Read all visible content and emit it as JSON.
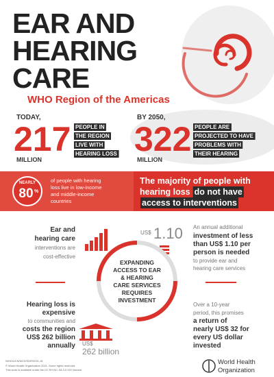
{
  "header": {
    "title": [
      "EAR AND",
      "HEARING",
      "CARE"
    ],
    "subtitle": "WHO Region of the Americas"
  },
  "stats": [
    {
      "when": "TODAY,",
      "number": "217",
      "unit": "MILLION",
      "label": [
        "PEOPLE IN",
        "THE REGION",
        "LIVE WITH",
        "HEARING LOSS"
      ]
    },
    {
      "when": "BY 2050,",
      "number": "322",
      "unit": "MILLION",
      "label": [
        "PEOPLE ARE",
        "PROJECTED TO HAVE",
        "PROBLEMS WITH",
        "THEIR HEARING"
      ]
    }
  ],
  "band": {
    "badge": {
      "prefix": "NEARLY",
      "number": "80",
      "unit": "%"
    },
    "badge_text": [
      "of people with hearing",
      "loss live in low-income",
      "and middle-income",
      "countries"
    ],
    "message": {
      "line1": "The majority of people with",
      "line2": "hearing loss",
      "highlight1": "do not have",
      "highlight2": "access to interventions"
    }
  },
  "facts": {
    "cost_effective": [
      "Ear and",
      "hearing care",
      "interventions are",
      "cost-effective"
    ],
    "per_person": {
      "currency": "US$",
      "amount": "1.10"
    },
    "investment": [
      "An annual additional",
      "investment of less",
      "than US$ 1.10 per",
      "person is needed",
      "to provide ear and",
      "hearing care services"
    ],
    "center": [
      "EXPANDING",
      "ACCESS TO EAR",
      "& HEARING",
      "CARE SERVICES",
      "REQUIRES",
      "INVESTMENT"
    ],
    "expensive": [
      "Hearing loss is",
      "expensive",
      "to communities and",
      "costs the region",
      "US$ 262 billion",
      "annually"
    ],
    "cost": {
      "currency": "US$",
      "amount": "262 billion"
    },
    "return": [
      "Over a 10-year",
      "period, this promises",
      "a return of",
      "nearly US$ 32 for",
      "every US dollar",
      "invested"
    ]
  },
  "footer": {
    "notes": [
      "WHO/UCN/NCD/SDR/2021.16",
      "© World Health Organization 2021. Some rights reserved.",
      "This work is available under the CC BY-NC-SA 3.0 IGO licence."
    ],
    "organization": [
      "World Health",
      "Organization"
    ]
  }
}
